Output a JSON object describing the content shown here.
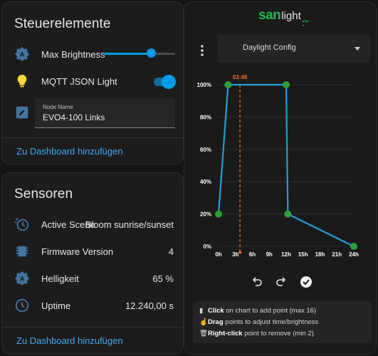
{
  "controls": {
    "title": "Steuerelemente",
    "brightness": {
      "label": "Max Brightness",
      "value_fraction": 0.66
    },
    "light": {
      "label": "MQTT JSON Light",
      "on": true
    },
    "node": {
      "label": "Node Name",
      "value": "EVO4-100 Links"
    },
    "link": "Zu Dashboard hinzufügen"
  },
  "sensors": {
    "title": "Sensoren",
    "rows": [
      {
        "label": "Active Scene",
        "value": "Bloom sunrise/sunset"
      },
      {
        "label": "Firmware Version",
        "value": "4"
      },
      {
        "label": "Helligkeit",
        "value": "65 %"
      },
      {
        "label": "Uptime",
        "value": "12.240,00 s"
      }
    ],
    "link": "Zu Dashboard hinzufügen"
  },
  "sanlight": {
    "logo_san": "san",
    "logo_light": "light",
    "config_select": "Daylight Config",
    "info": {
      "line1_bold": "Click",
      "line1_rest": " on chart to add point (max 16)",
      "line2_bold": "Drag",
      "line2_rest": " points to adjust time/brightness",
      "line3_bold": "Right-click",
      "line3_rest": " point to remove (min 2)"
    }
  },
  "colors": {
    "accent": "#039be5",
    "link": "#43a7ec",
    "point": "#2e9e3a",
    "marker": "#e66c2c",
    "line": "#1f9fd8"
  },
  "chart_data": {
    "type": "line",
    "x": [
      0,
      1.7,
      12,
      12.3,
      24
    ],
    "y": [
      20,
      100,
      100,
      20,
      0
    ],
    "xlim": [
      0,
      24
    ],
    "ylim": [
      0,
      100
    ],
    "x_ticks": [
      "0h",
      "3h",
      "6h",
      "9h",
      "12h",
      "15h",
      "18h",
      "21h",
      "24h"
    ],
    "y_ticks": [
      "0%",
      "20%",
      "40%",
      "60%",
      "80%",
      "100%"
    ],
    "marker": {
      "x": 3.8,
      "label": "03:48"
    },
    "grid": true
  }
}
